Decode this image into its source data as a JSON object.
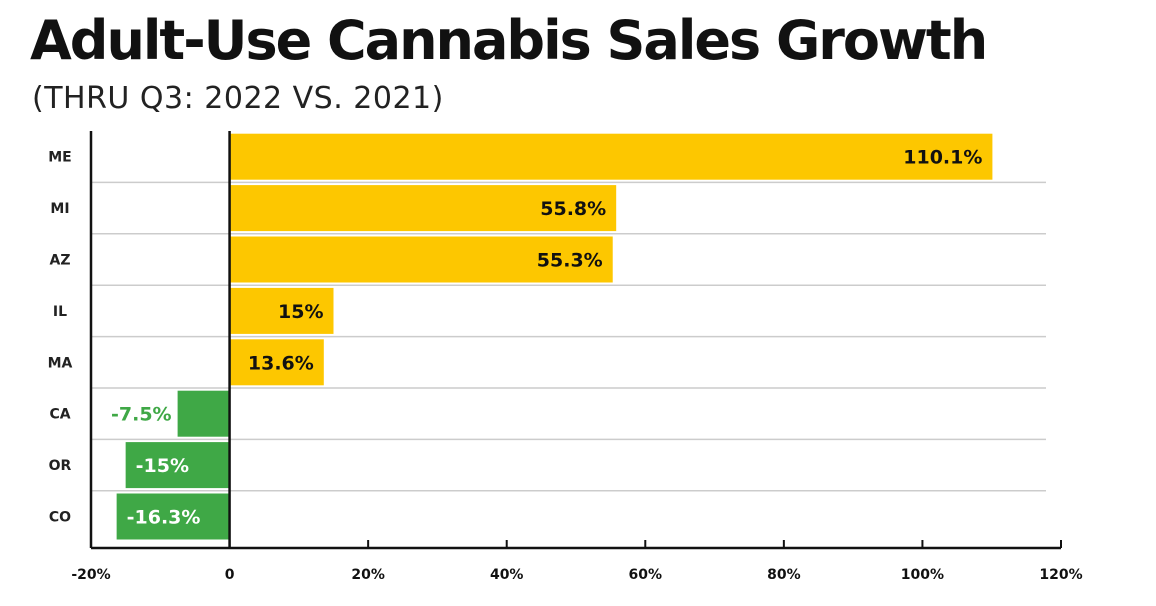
{
  "title": "Adult-Use Cannabis Sales Growth",
  "subtitle": "(THRU Q3: 2022 VS. 2021)",
  "colors": {
    "positive_bar": "#FDC700",
    "negative_bar": "#3FA846",
    "negative_label_outside": "#3FA846",
    "negative_label_inside": "#ffffff",
    "positive_label": "#111111",
    "gridline": "#cccccc",
    "axis": "#111111"
  },
  "chart_data": {
    "type": "bar",
    "orientation": "horizontal",
    "title": "Adult-Use Cannabis Sales Growth",
    "subtitle": "(THRU Q3: 2022 VS. 2021)",
    "categories": [
      "ME",
      "MI",
      "AZ",
      "IL",
      "MA",
      "CA",
      "OR",
      "CO"
    ],
    "values": [
      110.1,
      55.8,
      55.3,
      15,
      13.6,
      -7.5,
      -15,
      -16.3
    ],
    "value_labels": [
      "110.1%",
      "55.8%",
      "55.3%",
      "15%",
      "13.6%",
      "-7.5%",
      "-15%",
      "-16.3%"
    ],
    "xlim": [
      -20,
      120
    ],
    "xticks": [
      -20,
      0,
      20,
      40,
      60,
      80,
      100,
      120
    ],
    "xtick_labels": [
      "-20%",
      "0",
      "20%",
      "40%",
      "60%",
      "80%",
      "100%",
      "120%"
    ],
    "xlabel": "",
    "ylabel": "",
    "grid": true,
    "legend": false
  }
}
